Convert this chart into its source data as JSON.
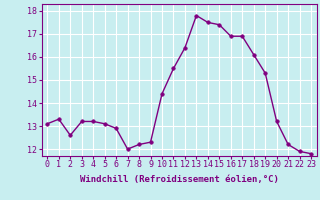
{
  "x": [
    0,
    1,
    2,
    3,
    4,
    5,
    6,
    7,
    8,
    9,
    10,
    11,
    12,
    13,
    14,
    15,
    16,
    17,
    18,
    19,
    20,
    21,
    22,
    23
  ],
  "y": [
    13.1,
    13.3,
    12.6,
    13.2,
    13.2,
    13.1,
    12.9,
    12.0,
    12.2,
    12.3,
    14.4,
    15.5,
    16.4,
    17.8,
    17.5,
    17.4,
    16.9,
    16.9,
    16.1,
    15.3,
    13.2,
    12.2,
    11.9,
    11.8
  ],
  "line_color": "#800080",
  "marker_color": "#800080",
  "bg_color": "#c8eef0",
  "grid_color": "#ffffff",
  "xlabel": "Windchill (Refroidissement éolien,°C)",
  "ylim": [
    11.7,
    18.3
  ],
  "xlim": [
    -0.5,
    23.5
  ],
  "yticks": [
    12,
    13,
    14,
    15,
    16,
    17,
    18
  ],
  "xticks": [
    0,
    1,
    2,
    3,
    4,
    5,
    6,
    7,
    8,
    9,
    10,
    11,
    12,
    13,
    14,
    15,
    16,
    17,
    18,
    19,
    20,
    21,
    22,
    23
  ],
  "xlabel_fontsize": 6.5,
  "tick_fontsize": 6.0,
  "line_width": 1.0,
  "marker_size": 2.5
}
